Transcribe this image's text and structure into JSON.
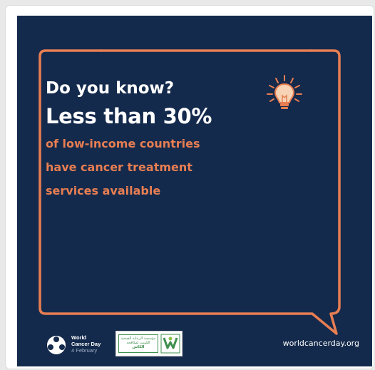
{
  "card": {
    "question": "Do you know?",
    "headline": "Less than 30%",
    "subtitle_lines": [
      "of low-income countries",
      "have cancer treatment",
      "services available"
    ]
  },
  "footer": {
    "brand_line1": "World",
    "brand_line2": "Cancer Day",
    "brand_date": "4 February",
    "partner_text_line1": "مؤسسة الرعاية الصحية",
    "partner_text_line2": "الكويت لمكافحة",
    "partner_text_line3": "الكاس",
    "website": "worldcancerday.org"
  },
  "colors": {
    "panel_bg": "#142a4c",
    "accent_orange": "#e87e52",
    "text_white": "#ffffff"
  },
  "icons": {
    "bulb": "lightbulb-icon",
    "brand": "world-cancer-day-logo-icon",
    "partner": "partner-logo-icon"
  }
}
